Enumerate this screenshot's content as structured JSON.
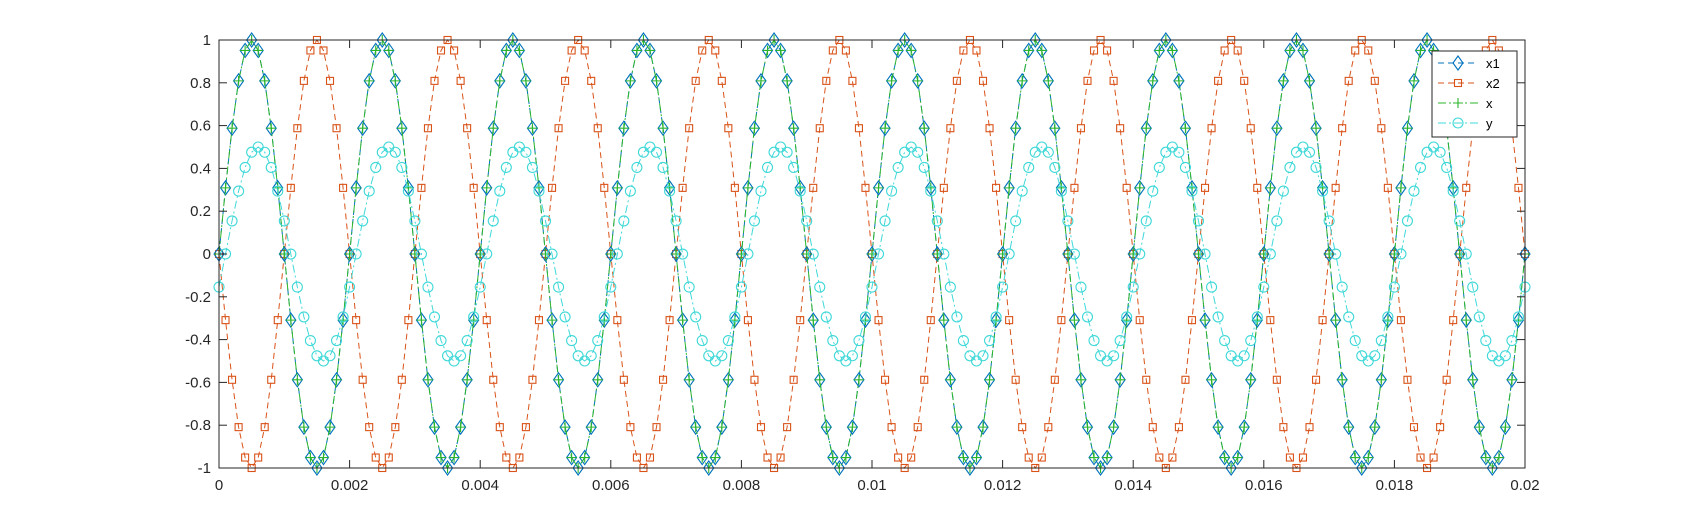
{
  "chart_data": {
    "type": "line",
    "title": "",
    "xlabel": "",
    "ylabel": "",
    "xlim": [
      0,
      0.02
    ],
    "ylim": [
      -1,
      1
    ],
    "x_ticks": [
      0,
      0.002,
      0.004,
      0.006,
      0.008,
      0.01,
      0.012,
      0.014,
      0.016,
      0.018,
      0.02
    ],
    "x_tick_labels": [
      "0",
      "0.002",
      "0.004",
      "0.006",
      "0.008",
      "0.01",
      "0.012",
      "0.014",
      "0.016",
      "0.018",
      "0.02"
    ],
    "y_ticks": [
      -1,
      -0.8,
      -0.6,
      -0.4,
      -0.2,
      0,
      0.2,
      0.4,
      0.6,
      0.8,
      1
    ],
    "y_tick_labels": [
      "-1",
      "-0.8",
      "-0.6",
      "-0.4",
      "-0.2",
      "0",
      "0.2",
      "0.4",
      "0.6",
      "0.8",
      "1"
    ],
    "grid": false,
    "legend_position": "top-right",
    "sampling": {
      "x_start": 0,
      "x_step": 0.0001,
      "n_points": 201
    },
    "series": [
      {
        "name": "x1",
        "frequency_hz": 500,
        "amplitude": 1,
        "phase_rad": 0,
        "color": "#0072BD",
        "line_style": "dashed",
        "marker": "diamond"
      },
      {
        "name": "x2",
        "frequency_hz": 9500,
        "amplitude": 1,
        "phase_rad": 0,
        "color": "#D95319",
        "line_style": "dashed",
        "marker": "square"
      },
      {
        "name": "x",
        "frequency_hz": 500,
        "amplitude": 1,
        "phase_rad": 0,
        "color": "#2BB52B",
        "line_style": "dash-dot",
        "marker": "plus"
      },
      {
        "name": "y",
        "frequency_hz": 500,
        "amplitude": 0.5,
        "phase_rad": -0.314,
        "color": "#3FD8D8",
        "line_style": "dash-dot",
        "marker": "circle"
      }
    ]
  }
}
